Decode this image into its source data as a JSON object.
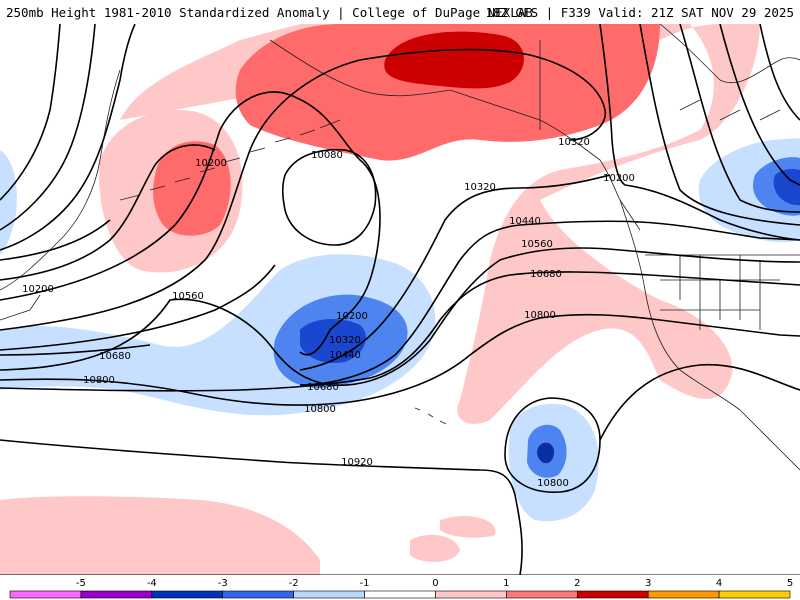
{
  "header": {
    "left_title": "250mb Height 1981-2010 Standardized Anomaly | College of DuPage NEXLAB",
    "right_title": "18Z GFS | F339 Valid: 21Z SAT NOV 29 2025"
  },
  "contour_labels": [
    "10200",
    "10080",
    "10320",
    "10200",
    "10320",
    "10440",
    "10560",
    "10680",
    "10800",
    "10560",
    "10680",
    "10800",
    "10200",
    "10320",
    "10440",
    "10680",
    "10800",
    "10920",
    "10800",
    "10200"
  ],
  "legend": {
    "tick_labels": [
      "-5",
      "-4",
      "-3",
      "-2",
      "-1",
      "0",
      "1",
      "2",
      "3",
      "4",
      "5"
    ],
    "colors": [
      "#ff66ff",
      "#9900cc",
      "#0033bb",
      "#3366ee",
      "#b8d8ff",
      "#ffffff",
      "#ffc8c8",
      "#ff7777",
      "#cc0000",
      "#ff9900",
      "#ffcc00"
    ]
  },
  "palette": {
    "strong_positive": "#cc0000",
    "positive": "#ff6a6a",
    "weak_positive": "#ffc8c8",
    "weak_negative": "#c8e0ff",
    "negative": "#4d84f0",
    "strong_negative": "#1a47d0",
    "contour": "#000000",
    "coastline": "#222222"
  }
}
